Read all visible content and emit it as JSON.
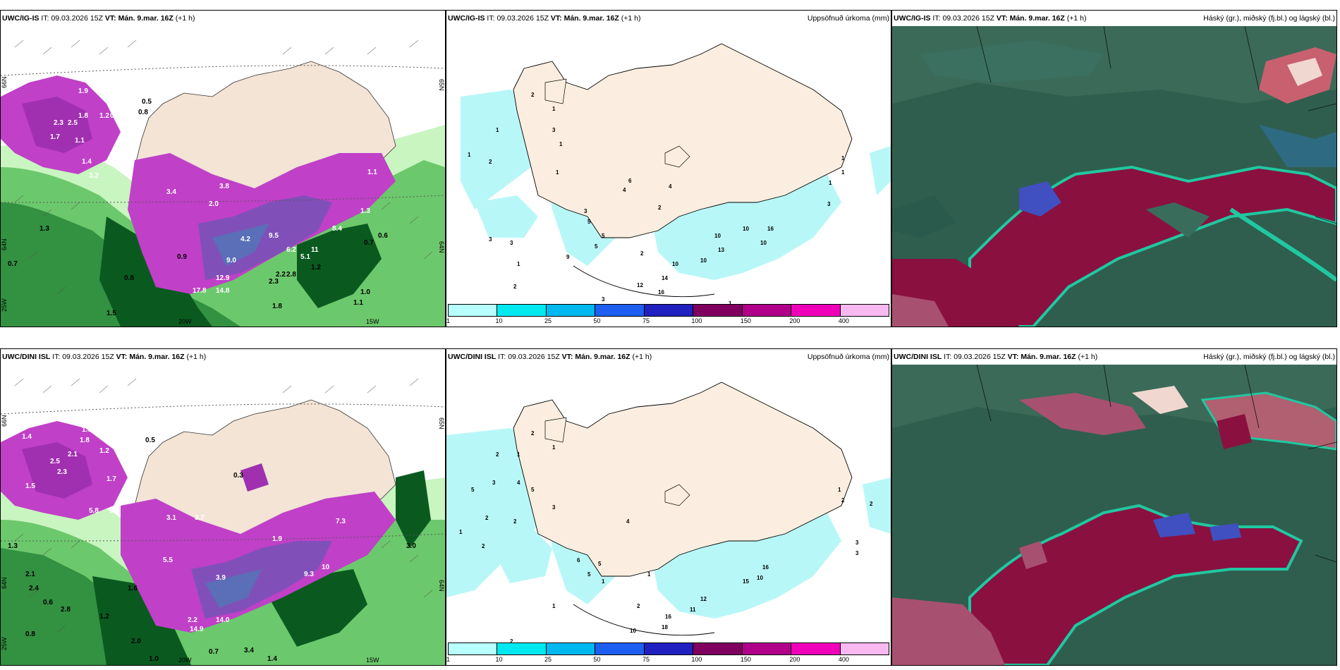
{
  "panels": [
    {
      "id": "p1",
      "model": "UWC/IG-IS",
      "it_label": "IT:",
      "it_value": "09.03.2026 15Z",
      "vt_label": "VT:",
      "vt_value": "Mán. 9.mar. 16Z",
      "offset": "(+1 h)",
      "right_title": "",
      "labels_white": [
        "1.9",
        "1.8",
        "2.3",
        "2.5",
        "1.7",
        "1.1",
        "1.2",
        "0.9",
        "1.4",
        "3.2",
        "2.0",
        "3.8",
        "3.4",
        "9.5",
        "4.2",
        "9.0",
        "12.9",
        "17.8",
        "14.8",
        "5.1",
        "8.4",
        "6.2",
        "11",
        "1.3",
        "1.1"
      ],
      "labels_black": [
        "0.5",
        "0.8",
        "0.7",
        "1.3",
        "0.6",
        "0.7",
        "1.5",
        "0.8",
        "1.2",
        "0.9",
        "2.3",
        "2.2",
        "2.8",
        "1.8",
        "1.0",
        "1.1"
      ],
      "axis_labels": [
        "66N",
        "64N",
        "65N",
        "64N",
        "25W",
        "20W",
        "15W"
      ]
    },
    {
      "id": "p2",
      "model": "UWC/IG-IS",
      "it_label": "IT:",
      "it_value": "09.03.2026 15Z",
      "vt_label": "VT:",
      "vt_value": "Mán. 9.mar. 16Z",
      "offset": "(+1 h)",
      "right_title": "Uppsöfnuð úrkoma (mm)",
      "numbers": [
        "2",
        "1",
        "1",
        "1",
        "2",
        "3",
        "1",
        "1",
        "4",
        "6",
        "2",
        "4",
        "3",
        "5",
        "9",
        "5",
        "5",
        "3",
        "3",
        "1",
        "2",
        "2",
        "3",
        "10",
        "10",
        "10",
        "13",
        "10",
        "16",
        "12",
        "10",
        "16",
        "14",
        "1",
        "1",
        "3",
        "1",
        "1"
      ]
    },
    {
      "id": "p3",
      "model": "UWC/IG-IS",
      "it_label": "IT:",
      "it_value": "09.03.2026 15Z",
      "vt_label": "VT:",
      "vt_value": "Mán. 9.mar. 16Z",
      "offset": "(+1 h)",
      "right_title": "Háský (gr.), miðský (fj.bl.) og lágský (bl.)"
    },
    {
      "id": "p4",
      "model": "UWC/DINI ISL",
      "it_label": "IT:",
      "it_value": "09.03.2026 15Z",
      "vt_label": "VT:",
      "vt_value": "Mán. 9.mar. 16Z",
      "offset": "(+1 h)",
      "right_title": "",
      "labels_white": [
        "1.4",
        "1.9",
        "1.8",
        "2.5",
        "2.1",
        "2.3",
        "1.5",
        "1.7",
        "1.2",
        "5.8",
        "2.7",
        "3.1",
        "3.7",
        "1.9",
        "7.3",
        "5.5",
        "3.9",
        "9.3",
        "10",
        "14.9",
        "14.0",
        "2.2"
      ],
      "labels_black": [
        "0.5",
        "0.3",
        "0.8",
        "0.6",
        "1.3",
        "2.1",
        "2.4",
        "1.6",
        "1.2",
        "0.7",
        "2.0",
        "1.0",
        "3.4",
        "1.4",
        "3.0",
        "2.8"
      ],
      "axis_labels": [
        "66N",
        "64N",
        "65N",
        "64N",
        "25W",
        "20W",
        "15W"
      ]
    },
    {
      "id": "p5",
      "model": "UWC/DINI ISL",
      "it_label": "IT:",
      "it_value": "09.03.2026 15Z",
      "vt_label": "VT:",
      "vt_value": "Mán. 9.mar. 16Z",
      "offset": "(+1 h)",
      "right_title": "Uppsöfnuð úrkoma (mm)",
      "numbers": [
        "2",
        "1",
        "2",
        "1",
        "5",
        "3",
        "4",
        "5",
        "2",
        "2",
        "1",
        "2",
        "3",
        "4",
        "6",
        "5",
        "5",
        "1",
        "2",
        "1",
        "10",
        "18",
        "11",
        "12",
        "15",
        "10",
        "16",
        "16",
        "2",
        "1",
        "3",
        "3",
        "2",
        "1",
        "2"
      ]
    },
    {
      "id": "p6",
      "model": "UWC/DINI ISL",
      "it_label": "IT:",
      "it_value": "09.03.2026 15Z",
      "vt_label": "VT:",
      "vt_value": "Mán. 9.mar. 16Z",
      "offset": "(+1 h)",
      "right_title": "Háský (gr.), miðský (fj.bl.) og lágský (bl.)"
    }
  ],
  "precip_legend": {
    "ticks": [
      "1",
      "10",
      "25",
      "50",
      "75",
      "100",
      "150",
      "200",
      "400"
    ],
    "colors": [
      "#b8ffff",
      "#00e8f0",
      "#00b8f0",
      "#1e5ef0",
      "#2020c0",
      "#800060",
      "#b0008a",
      "#f000b8",
      "#f8b8f0"
    ]
  },
  "colors": {
    "land": "#fbeee0",
    "precip_light": "#b8f7f7",
    "green_light": "#c8f5c0",
    "green_mid": "#6cc86c",
    "green_dark": "#0a5a20",
    "magenta": "#c040c8",
    "purple": "#8050b8",
    "cloud_bg": "#2f5e4e",
    "cloud_red": "#8a1040",
    "cloud_cyan": "#20c8a0"
  }
}
